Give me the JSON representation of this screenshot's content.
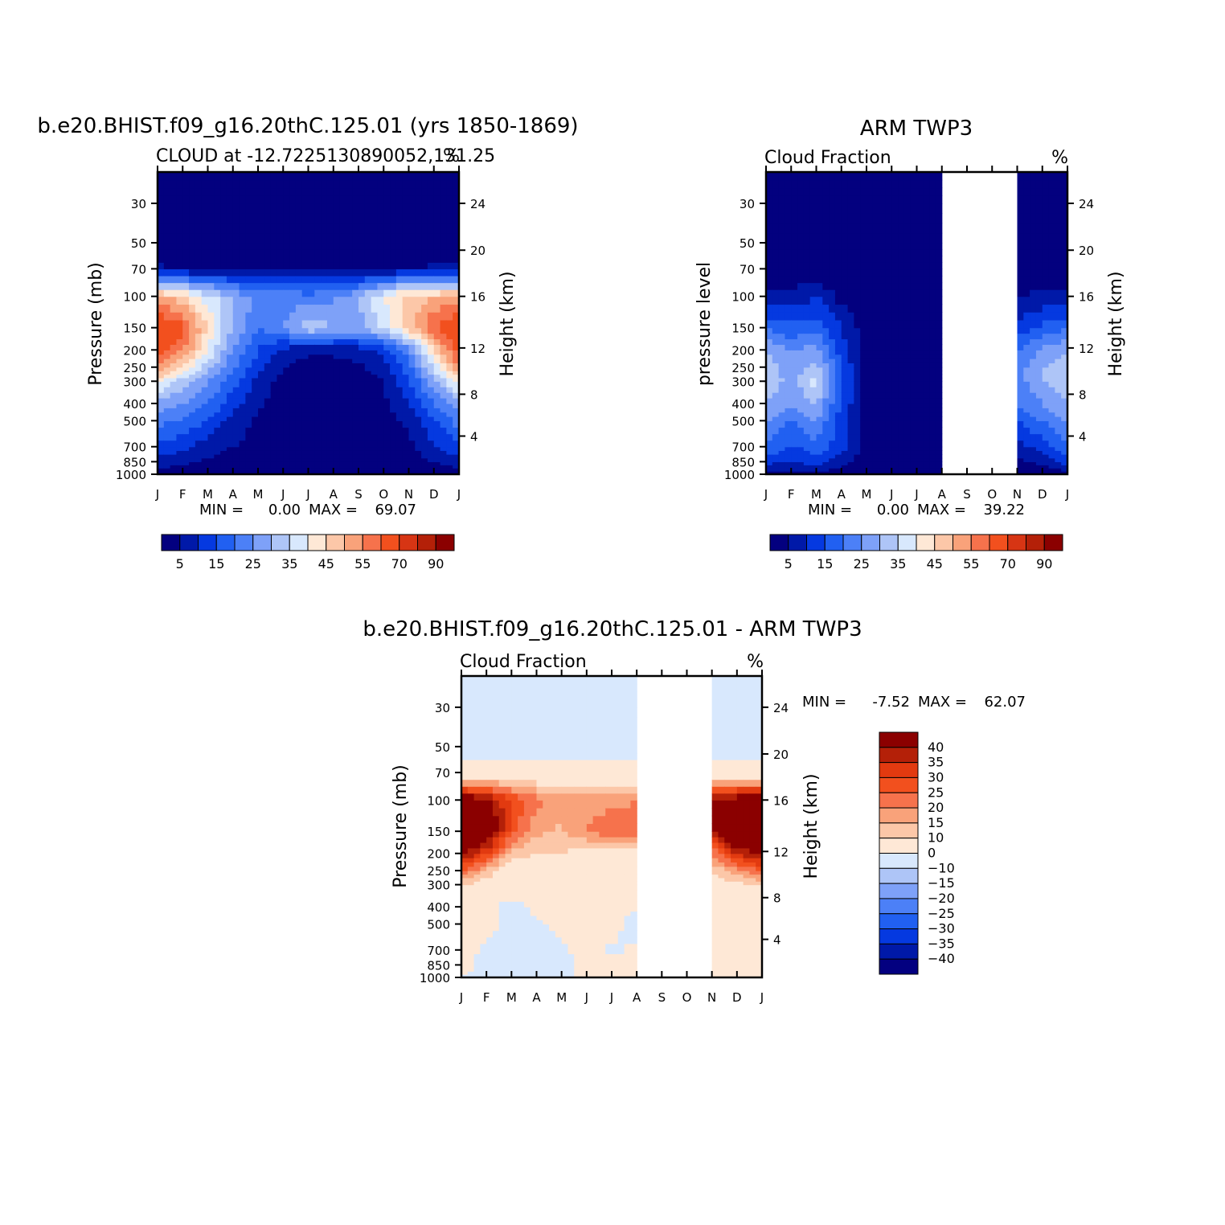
{
  "panels": [
    {
      "title": "b.e20.BHIST.f09_g16.20thC.125.01 (yrs 1850-1869)",
      "subtitle": "CLOUD at -12.7225130890052,131.25",
      "units": "%",
      "ylabel_left": "Pressure (mb)",
      "ylabel_right": "Height (km)",
      "min_label": "MIN =",
      "min_value": "0.00",
      "max_label": "MAX =",
      "max_value": "69.07"
    },
    {
      "title": "ARM TWP3",
      "subtitle": "Cloud Fraction",
      "units": "%",
      "ylabel_left": "pressure level",
      "ylabel_right": "Height (km)",
      "min_label": "MIN =",
      "min_value": "0.00",
      "max_label": "MAX =",
      "max_value": "39.22"
    },
    {
      "title": "b.e20.BHIST.f09_g16.20thC.125.01 - ARM TWP3",
      "subtitle": "Cloud Fraction",
      "units": "%",
      "ylabel_left": "Pressure (mb)",
      "ylabel_right": "Height (km)",
      "min_label": "MIN =",
      "min_value": "-7.52",
      "max_label": "MAX =",
      "max_value": "62.07"
    }
  ],
  "chart_data": [
    {
      "type": "heatmap",
      "title": "b.e20.BHIST.f09_g16.20thC.125.01 (yrs 1850-1869)",
      "subtitle": "CLOUD at -12.7225130890052,131.25",
      "units": "%",
      "x_ticks": [
        "J",
        "F",
        "M",
        "A",
        "M",
        "J",
        "J",
        "A",
        "S",
        "O",
        "N",
        "D",
        "J"
      ],
      "y_ticks": [
        30,
        50,
        70,
        100,
        150,
        200,
        250,
        300,
        400,
        500,
        700,
        850,
        1000
      ],
      "y_right_ticks": [
        24,
        20,
        16,
        12,
        8,
        4
      ],
      "y_scale": "log",
      "ylim": [
        20,
        1000
      ],
      "levels": [
        5,
        10,
        15,
        20,
        25,
        30,
        35,
        40,
        45,
        50,
        55,
        60,
        70,
        80,
        90
      ],
      "colorbar_labels": [
        "5",
        "15",
        "25",
        "35",
        "45",
        "55",
        "70",
        "90"
      ],
      "colorbar_orientation": "horizontal",
      "min": 0.0,
      "max": 69.07,
      "pressure": [
        1000,
        850,
        700,
        500,
        400,
        300,
        250,
        200,
        150,
        100,
        70,
        50,
        30,
        20
      ],
      "values": [
        [
          2,
          2,
          2,
          1,
          1,
          1,
          1,
          1,
          1,
          1,
          1,
          1,
          2
        ],
        [
          8,
          6,
          4,
          2,
          1,
          1,
          1,
          1,
          1,
          1,
          2,
          5,
          8
        ],
        [
          14,
          11,
          8,
          5,
          3,
          1,
          1,
          1,
          1,
          2,
          4,
          9,
          14
        ],
        [
          22,
          19,
          14,
          8,
          4,
          2,
          1,
          1,
          1,
          3,
          6,
          14,
          22
        ],
        [
          28,
          25,
          20,
          12,
          6,
          2,
          1,
          1,
          1,
          4,
          10,
          20,
          28
        ],
        [
          42,
          32,
          25,
          17,
          8,
          3,
          1,
          1,
          1,
          5,
          14,
          28,
          42
        ],
        [
          55,
          44,
          32,
          21,
          12,
          5,
          3,
          3,
          4,
          8,
          18,
          36,
          55
        ],
        [
          62,
          55,
          40,
          24,
          15,
          8,
          6,
          6,
          7,
          11,
          23,
          45,
          62
        ],
        [
          68,
          62,
          44,
          30,
          20,
          25,
          34,
          30,
          28,
          36,
          47,
          60,
          68
        ],
        [
          52,
          46,
          38,
          30,
          24,
          23,
          22,
          24,
          30,
          40,
          48,
          50,
          52
        ],
        [
          6,
          5,
          5,
          5,
          4,
          4,
          4,
          4,
          4,
          5,
          5,
          6,
          6
        ],
        [
          0,
          0,
          0,
          0,
          0,
          0,
          0,
          0,
          0,
          0,
          0,
          0,
          0
        ],
        [
          0,
          0,
          0,
          0,
          0,
          0,
          0,
          0,
          0,
          0,
          0,
          0,
          0
        ],
        [
          0,
          0,
          0,
          0,
          0,
          0,
          0,
          0,
          0,
          0,
          0,
          0,
          0
        ]
      ]
    },
    {
      "type": "heatmap",
      "title": "ARM TWP3",
      "subtitle": "Cloud Fraction",
      "units": "%",
      "x_ticks": [
        "J",
        "F",
        "M",
        "A",
        "M",
        "J",
        "J",
        "A",
        "S",
        "O",
        "N",
        "D",
        "J"
      ],
      "y_ticks": [
        30,
        50,
        70,
        100,
        150,
        200,
        250,
        300,
        400,
        500,
        700,
        850,
        1000
      ],
      "y_right_ticks": [
        24,
        20,
        16,
        12,
        8,
        4
      ],
      "y_scale": "log",
      "ylim": [
        20,
        1000
      ],
      "levels": [
        5,
        10,
        15,
        20,
        25,
        30,
        35,
        40,
        45,
        50,
        55,
        60,
        70,
        80,
        90
      ],
      "colorbar_labels": [
        "5",
        "15",
        "25",
        "35",
        "45",
        "55",
        "70",
        "90"
      ],
      "colorbar_orientation": "horizontal",
      "min": 0.0,
      "max": 39.22,
      "missing_months": [
        "S",
        "O"
      ],
      "pressure": [
        1000,
        850,
        700,
        500,
        400,
        300,
        250,
        200,
        150,
        100,
        70,
        50,
        30,
        20
      ],
      "values": [
        [
          2,
          3,
          4,
          2,
          1,
          1,
          1,
          1,
          null,
          null,
          2,
          2,
          2
        ],
        [
          12,
          9,
          13,
          6,
          2,
          1,
          1,
          1,
          null,
          null,
          4,
          6,
          12
        ],
        [
          20,
          14,
          18,
          12,
          3,
          1,
          1,
          1,
          null,
          null,
          8,
          12,
          20
        ],
        [
          25,
          20,
          25,
          12,
          3,
          1,
          1,
          1,
          null,
          null,
          15,
          20,
          25
        ],
        [
          30,
          25,
          30,
          14,
          3,
          1,
          1,
          1,
          null,
          null,
          20,
          25,
          30
        ],
        [
          34,
          28,
          38,
          16,
          3,
          1,
          1,
          1,
          null,
          null,
          22,
          30,
          34
        ],
        [
          33,
          27,
          32,
          15,
          3,
          1,
          1,
          1,
          null,
          null,
          22,
          30,
          33
        ],
        [
          30,
          25,
          28,
          12,
          3,
          1,
          1,
          1,
          null,
          null,
          20,
          26,
          30
        ],
        [
          20,
          16,
          18,
          10,
          2,
          1,
          1,
          1,
          null,
          null,
          12,
          16,
          20
        ],
        [
          7,
          6,
          10,
          3,
          1,
          1,
          1,
          1,
          null,
          null,
          5,
          6,
          7
        ],
        [
          1,
          1,
          1,
          1,
          1,
          1,
          1,
          1,
          null,
          null,
          1,
          1,
          1
        ],
        [
          0,
          0,
          0,
          0,
          0,
          0,
          0,
          0,
          null,
          null,
          0,
          0,
          0
        ],
        [
          0,
          0,
          0,
          0,
          0,
          0,
          0,
          0,
          null,
          null,
          0,
          0,
          0
        ],
        [
          0,
          0,
          0,
          0,
          0,
          0,
          0,
          0,
          null,
          null,
          0,
          0,
          0
        ]
      ]
    },
    {
      "type": "heatmap",
      "title": "b.e20.BHIST.f09_g16.20thC.125.01 - ARM TWP3",
      "subtitle": "Cloud Fraction",
      "units": "%",
      "x_ticks": [
        "J",
        "F",
        "M",
        "A",
        "M",
        "J",
        "J",
        "A",
        "S",
        "O",
        "N",
        "D",
        "J"
      ],
      "y_ticks": [
        30,
        50,
        70,
        100,
        150,
        200,
        250,
        300,
        400,
        500,
        700,
        850,
        1000
      ],
      "y_right_ticks": [
        24,
        20,
        16,
        12,
        8,
        4
      ],
      "y_scale": "log",
      "ylim": [
        20,
        1000
      ],
      "levels": [
        -40,
        -35,
        -30,
        -25,
        -20,
        -15,
        -10,
        0,
        10,
        15,
        20,
        25,
        30,
        35,
        40
      ],
      "colorbar_labels": [
        "40",
        "35",
        "30",
        "25",
        "20",
        "15",
        "10",
        "0",
        "-10",
        "-15",
        "-20",
        "-25",
        "-30",
        "-35",
        "-40"
      ],
      "colorbar_orientation": "vertical",
      "min": -7.52,
      "max": 62.07,
      "missing_months": [
        "S",
        "O"
      ],
      "pressure": [
        1000,
        850,
        700,
        500,
        400,
        300,
        250,
        200,
        150,
        100,
        70,
        50,
        30,
        20
      ],
      "values": [
        [
          0,
          -1,
          -2,
          -1,
          0,
          0,
          0,
          0,
          null,
          null,
          0,
          0,
          0
        ],
        [
          1,
          -1,
          -3,
          -2,
          -1,
          1,
          2,
          1,
          null,
          null,
          1,
          1,
          1
        ],
        [
          2,
          -1,
          -4,
          -2,
          -1,
          2,
          -1,
          1,
          null,
          null,
          2,
          2,
          2
        ],
        [
          5,
          3,
          -4,
          -1,
          1,
          2,
          2,
          -3,
          null,
          null,
          3,
          4,
          5
        ],
        [
          6,
          2,
          -3,
          2,
          2,
          3,
          2,
          1,
          null,
          null,
          4,
          5,
          6
        ],
        [
          10,
          6,
          4,
          5,
          3,
          3,
          3,
          2,
          null,
          null,
          6,
          8,
          10
        ],
        [
          25,
          14,
          5,
          6,
          6,
          4,
          3,
          3,
          null,
          null,
          10,
          18,
          25
        ],
        [
          42,
          30,
          12,
          10,
          10,
          7,
          5,
          6,
          null,
          null,
          20,
          35,
          42
        ],
        [
          55,
          50,
          28,
          16,
          14,
          20,
          25,
          24,
          null,
          null,
          38,
          54,
          55
        ],
        [
          48,
          42,
          30,
          22,
          18,
          18,
          18,
          20,
          null,
          null,
          40,
          46,
          48
        ],
        [
          3,
          3,
          2,
          3,
          2,
          3,
          2,
          2,
          null,
          null,
          3,
          3,
          3
        ],
        [
          -2,
          -2,
          -2,
          -2,
          -2,
          -2,
          -2,
          -2,
          null,
          null,
          -2,
          -2,
          -2
        ],
        [
          -3,
          -3,
          -3,
          -3,
          -3,
          -3,
          -3,
          -3,
          null,
          null,
          -3,
          -3,
          -3
        ],
        [
          -3,
          -3,
          -3,
          -3,
          -3,
          -3,
          -3,
          -3,
          null,
          null,
          -3,
          -3,
          -3
        ]
      ]
    }
  ],
  "colors": {
    "full_scale": [
      "#03007f",
      "#0019a8",
      "#0539e0",
      "#2160f1",
      "#4c80f7",
      "#7ea1f8",
      "#aec5f7",
      "#d8e8fd",
      "#fee8d6",
      "#fcc7a8",
      "#f9a27a",
      "#f6724c",
      "#f2501e",
      "#d73514",
      "#b42008",
      "#8b0000"
    ],
    "diff_scale": [
      "#030080",
      "#0019a8",
      "#0539e0",
      "#2160f1",
      "#4c80f7",
      "#7ea1f8",
      "#aec5f7",
      "#d8e8fd",
      "#fee8d6",
      "#fcc7a8",
      "#f9a27a",
      "#f6724c",
      "#f2501e",
      "#e23a10",
      "#b42008",
      "#8b0000"
    ]
  }
}
